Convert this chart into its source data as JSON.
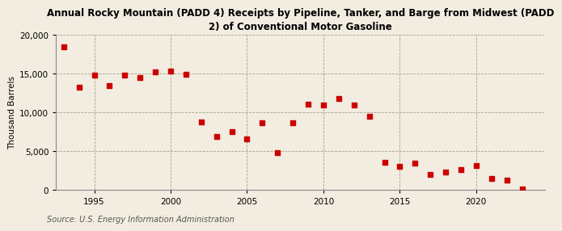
{
  "title": "Annual Rocky Mountain (PADD 4) Receipts by Pipeline, Tanker, and Barge from Midwest (PADD\n2) of Conventional Motor Gasoline",
  "ylabel": "Thousand Barrels",
  "source": "Source: U.S. Energy Information Administration",
  "background_color": "#f2ede0",
  "plot_background_color": "#f2ede0",
  "marker_color": "#cc0000",
  "marker_size": 18,
  "years": [
    1993,
    1994,
    1995,
    1996,
    1997,
    1998,
    1999,
    2000,
    2001,
    2002,
    2003,
    2004,
    2005,
    2006,
    2007,
    2008,
    2009,
    2010,
    2011,
    2012,
    2013,
    2014,
    2015,
    2016,
    2017,
    2018,
    2019,
    2020,
    2021,
    2022,
    2023
  ],
  "values": [
    18500,
    13200,
    14800,
    13500,
    14800,
    14500,
    15200,
    15300,
    14900,
    8800,
    6900,
    7500,
    6600,
    8700,
    4800,
    8700,
    11100,
    11000,
    11800,
    11000,
    9500,
    3500,
    3000,
    3400,
    2000,
    2300,
    2600,
    3100,
    1500,
    1200,
    100
  ],
  "ylim": [
    0,
    20000
  ],
  "yticks": [
    0,
    5000,
    10000,
    15000,
    20000
  ],
  "xticks": [
    1995,
    2000,
    2005,
    2010,
    2015,
    2020
  ],
  "xlim": [
    1992.5,
    2024.5
  ]
}
